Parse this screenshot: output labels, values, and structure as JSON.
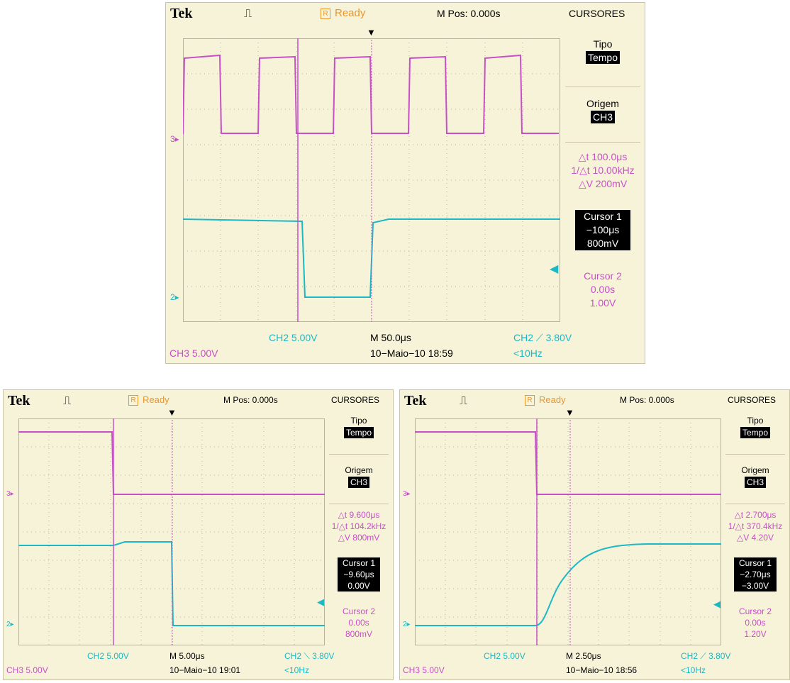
{
  "scopes": [
    {
      "brand": "Tek",
      "status_letter": "R",
      "status": "Ready",
      "mpos": "M Pos: 0.000s",
      "menu_title": "CURSORES",
      "tipo_label": "Tipo",
      "tipo_value": "Tempo",
      "origem_label": "Origem",
      "origem_value": "CH3",
      "delta_t": "△t 100.0μs",
      "freq": "1/△t 10.00kHz",
      "delta_v": "△V 200mV",
      "cursor1_label": "Cursor 1",
      "cursor1_time": "−100μs",
      "cursor1_volt": "800mV",
      "cursor2_label": "Cursor 2",
      "cursor2_time": "0.00s",
      "cursor2_volt": "1.00V",
      "ch2_scale": "CH2  5.00V",
      "ch3_scale": "CH3  5.00V",
      "timebase": "M 50.0μs",
      "datetime": "10−Maio−10 18:59",
      "trigger": "CH2 ⟋ 3.80V",
      "trig_freq": "<10Hz",
      "marker3": "3▸",
      "marker2": "2▸"
    },
    {
      "brand": "Tek",
      "status_letter": "R",
      "status": "Ready",
      "mpos": "M Pos: 0.000s",
      "menu_title": "CURSORES",
      "tipo_label": "Tipo",
      "tipo_value": "Tempo",
      "origem_label": "Origem",
      "origem_value": "CH3",
      "delta_t": "△t 9.600μs",
      "freq": "1/△t 104.2kHz",
      "delta_v": "△V 800mV",
      "cursor1_label": "Cursor 1",
      "cursor1_time": "−9.60μs",
      "cursor1_volt": "0.00V",
      "cursor2_label": "Cursor 2",
      "cursor2_time": "0.00s",
      "cursor2_volt": "800mV",
      "ch2_scale": "CH2  5.00V",
      "ch3_scale": "CH3  5.00V",
      "timebase": "M 5.00μs",
      "datetime": "10−Maio−10 19:01",
      "trigger": "CH2 ⟍ 3.80V",
      "trig_freq": "<10Hz",
      "marker3": "3▸",
      "marker2": "2▸"
    },
    {
      "brand": "Tek",
      "status_letter": "R",
      "status": "Ready",
      "mpos": "M Pos: 0.000s",
      "menu_title": "CURSORES",
      "tipo_label": "Tipo",
      "tipo_value": "Tempo",
      "origem_label": "Origem",
      "origem_value": "CH3",
      "delta_t": "△t 2.700μs",
      "freq": "1/△t 370.4kHz",
      "delta_v": "△V 4.20V",
      "cursor1_label": "Cursor 1",
      "cursor1_time": "−2.70μs",
      "cursor1_volt": "−3.00V",
      "cursor2_label": "Cursor 2",
      "cursor2_time": "0.00s",
      "cursor2_volt": "1.20V",
      "ch2_scale": "CH2  5.00V",
      "ch3_scale": "CH3  5.00V",
      "timebase": "M 2.50μs",
      "datetime": "10−Maio−10 18:56",
      "trigger": "CH2 ⟋ 3.80V",
      "trig_freq": "<10Hz",
      "marker3": "3▸",
      "marker2": "2▸"
    }
  ],
  "colors": {
    "ch3": "#c84fc8",
    "ch2": "#1cb8c4",
    "background": "#f7f3d9"
  }
}
